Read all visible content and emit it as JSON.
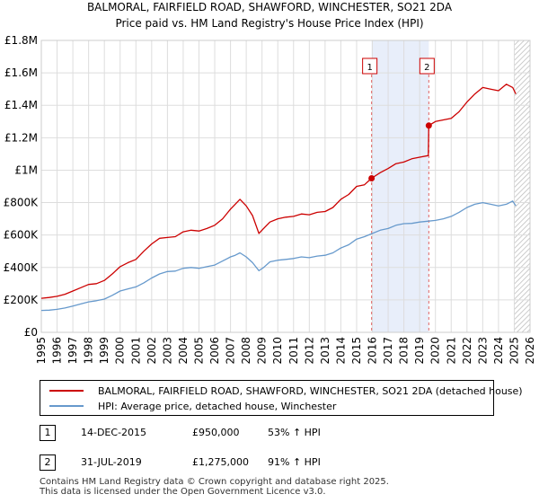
{
  "chart_data": {
    "type": "line",
    "title": "BALMORAL, FAIRFIELD ROAD, SHAWFORD, WINCHESTER, SO21 2DA",
    "subtitle": "Price paid vs. HM Land Registry's House Price Index (HPI)",
    "xlabel": "",
    "ylabel": "",
    "xlim": [
      1995,
      2026
    ],
    "ylim": [
      0,
      1800000
    ],
    "yticks": [
      {
        "value": 0,
        "label": "£0"
      },
      {
        "value": 200000,
        "label": "£200K"
      },
      {
        "value": 400000,
        "label": "£400K"
      },
      {
        "value": 600000,
        "label": "£600K"
      },
      {
        "value": 800000,
        "label": "£800K"
      },
      {
        "value": 1000000,
        "label": "£1M"
      },
      {
        "value": 1200000,
        "label": "£1.2M"
      },
      {
        "value": 1400000,
        "label": "£1.4M"
      },
      {
        "value": 1600000,
        "label": "£1.6M"
      },
      {
        "value": 1800000,
        "label": "£1.8M"
      }
    ],
    "xticks": [
      "1995",
      "1996",
      "1997",
      "1998",
      "1999",
      "2000",
      "2001",
      "2002",
      "2003",
      "2004",
      "2005",
      "2006",
      "2007",
      "2008",
      "2009",
      "2010",
      "2011",
      "2012",
      "2013",
      "2014",
      "2015",
      "2016",
      "2017",
      "2018",
      "2019",
      "2020",
      "2021",
      "2022",
      "2023",
      "2024",
      "2025",
      "2026"
    ],
    "grid": true,
    "shaded_period": [
      2015.95,
      2019.58
    ],
    "hatched_from": 2025.0,
    "series": [
      {
        "name": "BALMORAL, FAIRFIELD ROAD, SHAWFORD, WINCHESTER, SO21 2DA (detached house)",
        "color": "#cc0000",
        "x": [
          1995.0,
          1995.5,
          1996.0,
          1996.5,
          1997.0,
          1997.5,
          1998.0,
          1998.5,
          1999.0,
          1999.5,
          2000.0,
          2000.5,
          2001.0,
          2001.5,
          2002.0,
          2002.5,
          2003.0,
          2003.5,
          2004.0,
          2004.5,
          2005.0,
          2005.5,
          2006.0,
          2006.5,
          2007.0,
          2007.3,
          2007.6,
          2008.0,
          2008.4,
          2008.8,
          2009.1,
          2009.5,
          2010.0,
          2010.5,
          2011.0,
          2011.5,
          2012.0,
          2012.5,
          2013.0,
          2013.5,
          2014.0,
          2014.5,
          2015.0,
          2015.5,
          2015.95,
          2016.5,
          2017.0,
          2017.5,
          2018.0,
          2018.5,
          2019.0,
          2019.55,
          2019.58,
          2020.0,
          2020.5,
          2021.0,
          2021.5,
          2022.0,
          2022.5,
          2023.0,
          2023.5,
          2024.0,
          2024.5,
          2024.9,
          2025.1
        ],
        "values": [
          210000,
          215000,
          222000,
          235000,
          255000,
          275000,
          295000,
          300000,
          320000,
          360000,
          405000,
          430000,
          450000,
          500000,
          545000,
          580000,
          585000,
          590000,
          620000,
          630000,
          625000,
          640000,
          660000,
          700000,
          760000,
          790000,
          820000,
          780000,
          720000,
          610000,
          640000,
          680000,
          700000,
          710000,
          715000,
          730000,
          725000,
          740000,
          745000,
          770000,
          820000,
          850000,
          900000,
          910000,
          950000,
          985000,
          1010000,
          1040000,
          1050000,
          1070000,
          1080000,
          1090000,
          1275000,
          1300000,
          1310000,
          1320000,
          1360000,
          1420000,
          1470000,
          1510000,
          1500000,
          1490000,
          1530000,
          1510000,
          1470000
        ]
      },
      {
        "name": "HPI: Average price, detached house, Winchester",
        "color": "#6699cc",
        "x": [
          1995.0,
          1995.5,
          1996.0,
          1996.5,
          1997.0,
          1997.5,
          1998.0,
          1998.5,
          1999.0,
          1999.5,
          2000.0,
          2000.5,
          2001.0,
          2001.5,
          2002.0,
          2002.5,
          2003.0,
          2003.5,
          2004.0,
          2004.5,
          2005.0,
          2005.5,
          2006.0,
          2006.5,
          2007.0,
          2007.3,
          2007.6,
          2008.0,
          2008.4,
          2008.8,
          2009.1,
          2009.5,
          2010.0,
          2010.5,
          2011.0,
          2011.5,
          2012.0,
          2012.5,
          2013.0,
          2013.5,
          2014.0,
          2014.5,
          2015.0,
          2015.5,
          2016.0,
          2016.5,
          2017.0,
          2017.5,
          2018.0,
          2018.5,
          2019.0,
          2019.5,
          2020.0,
          2020.5,
          2021.0,
          2021.5,
          2022.0,
          2022.5,
          2023.0,
          2023.5,
          2024.0,
          2024.5,
          2024.9,
          2025.1
        ],
        "values": [
          135000,
          137000,
          142000,
          150000,
          162000,
          175000,
          188000,
          195000,
          205000,
          228000,
          255000,
          268000,
          280000,
          305000,
          335000,
          360000,
          375000,
          378000,
          395000,
          400000,
          395000,
          405000,
          415000,
          440000,
          465000,
          475000,
          490000,
          465000,
          430000,
          380000,
          400000,
          435000,
          445000,
          450000,
          455000,
          465000,
          460000,
          470000,
          475000,
          490000,
          520000,
          540000,
          575000,
          590000,
          610000,
          630000,
          640000,
          660000,
          670000,
          672000,
          680000,
          685000,
          690000,
          700000,
          715000,
          740000,
          770000,
          790000,
          800000,
          790000,
          780000,
          790000,
          810000,
          780000
        ]
      }
    ],
    "markers": [
      {
        "label": "1",
        "x": 2015.95,
        "y": 950000
      },
      {
        "label": "2",
        "x": 2019.58,
        "y": 1275000
      }
    ]
  },
  "legend": {
    "property": "BALMORAL, FAIRFIELD ROAD, SHAWFORD, WINCHESTER, SO21 2DA (detached house)",
    "hpi": "HPI: Average price, detached house, Winchester"
  },
  "transactions": [
    {
      "num": "1",
      "date": "14-DEC-2015",
      "price": "£950,000",
      "hpi": "53% ↑ HPI"
    },
    {
      "num": "2",
      "date": "31-JUL-2019",
      "price": "£1,275,000",
      "hpi": "91% ↑ HPI"
    }
  ],
  "footer": {
    "line1": "Contains HM Land Registry data © Crown copyright and database right 2025.",
    "line2": "This data is licensed under the Open Government Licence v3.0."
  }
}
